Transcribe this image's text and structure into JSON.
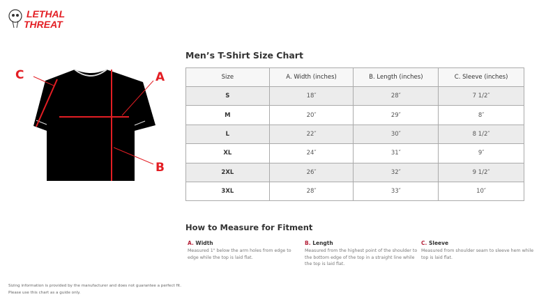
{
  "brand": {
    "logo_text": "LETHAL THREAT"
  },
  "diagram": {
    "labels": [
      "A",
      "B",
      "C"
    ],
    "accent": "#e31e24"
  },
  "size_chart": {
    "title": "Men’s T-Shirt Size Chart",
    "headers": [
      "Size",
      "A. Width (inches)",
      "B. Length (inches)",
      "C. Sleeve (inches)"
    ],
    "rows": [
      [
        "S",
        "18″",
        "28″",
        "7 1/2″"
      ],
      [
        "M",
        "20″",
        "29″",
        "8″"
      ],
      [
        "L",
        "22″",
        "30″",
        "8 1/2″"
      ],
      [
        "XL",
        "24″",
        "31″",
        "9″"
      ],
      [
        "2XL",
        "26″",
        "32″",
        "9 1/2″"
      ],
      [
        "3XL",
        "28″",
        "33″",
        "10″"
      ]
    ]
  },
  "measure": {
    "title": "How to Measure for Fitment",
    "items": [
      {
        "letter": "A.",
        "name": "Width",
        "text": "Measured 1\" below the arm holes from edge to edge while the top is laid flat."
      },
      {
        "letter": "B.",
        "name": "Length",
        "text": "Measured from the highest point of the shoulder to the bottom edge of the top in a straight line while the top is laid flat."
      },
      {
        "letter": "C.",
        "name": "Sleeve",
        "text": "Measured from shoulder seam to sleeve hem while top is laid flat."
      }
    ]
  },
  "footer": {
    "line1": "Sizing information is provided by the manufacturer and does not guarantee a perfect fit.",
    "line2": "Please use this chart as a guide only."
  }
}
